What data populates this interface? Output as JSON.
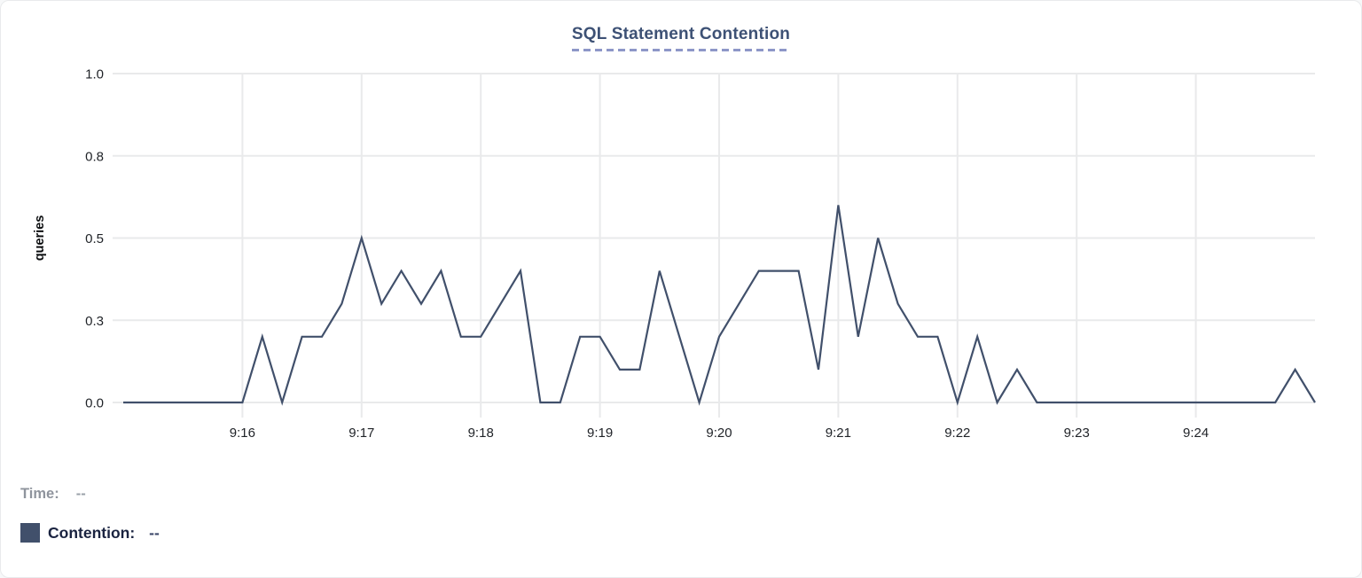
{
  "title": "SQL Statement Contention",
  "legend": {
    "time_label": "Time:",
    "time_value": "--",
    "series_label": "Contention:",
    "series_value": "--"
  },
  "colors": {
    "line": "#41506b",
    "swatch": "#41506b",
    "title": "#3d5175",
    "underline": "#8d97c8",
    "grid": "#e9eaeb",
    "tick": "#1f2227",
    "time_label": "#8f949d",
    "time_value": "#9aa0a8",
    "contention_label": "#1a2340",
    "contention_value": "#3c486a",
    "card_border": "#e9eaec",
    "card_bg": "#ffffff"
  },
  "chart_data": {
    "type": "line",
    "title": "SQL Statement Contention",
    "xlabel": "",
    "ylabel": "queries",
    "ylim": [
      0,
      1.0
    ],
    "grid": true,
    "legend_position": "bottom-left",
    "x_range": [
      "9:15",
      "9:25"
    ],
    "sample_interval_seconds": 10,
    "y_ticks": [
      {
        "value": 0,
        "label": "0.0"
      },
      {
        "value": 0.25,
        "label": "0.3"
      },
      {
        "value": 0.5,
        "label": "0.5"
      },
      {
        "value": 0.75,
        "label": "0.8"
      },
      {
        "value": 1.0,
        "label": "1.0"
      }
    ],
    "x_tick_labels": [
      "9:16",
      "9:17",
      "9:18",
      "9:19",
      "9:20",
      "9:21",
      "9:22",
      "9:23",
      "9:24"
    ],
    "x_tick_point_indices": [
      6,
      12,
      18,
      24,
      30,
      36,
      42,
      48,
      54
    ],
    "series": [
      {
        "name": "Contention",
        "unit": "queries",
        "color": "#41506b",
        "values": [
          0,
          0,
          0,
          0,
          0,
          0,
          0,
          0.2,
          0,
          0.2,
          0.2,
          0.3,
          0.5,
          0.3,
          0.4,
          0.3,
          0.4,
          0.2,
          0.2,
          0.3,
          0.4,
          0,
          0,
          0.2,
          0.2,
          0.1,
          0.1,
          0.4,
          0.2,
          0,
          0.2,
          0.3,
          0.4,
          0.4,
          0.4,
          0.1,
          0.6,
          0.2,
          0.5,
          0.3,
          0.2,
          0.2,
          0,
          0.2,
          0,
          0.1,
          0,
          0,
          0,
          0,
          0,
          0,
          0,
          0,
          0,
          0,
          0,
          0,
          0,
          0.1,
          0
        ]
      }
    ]
  }
}
